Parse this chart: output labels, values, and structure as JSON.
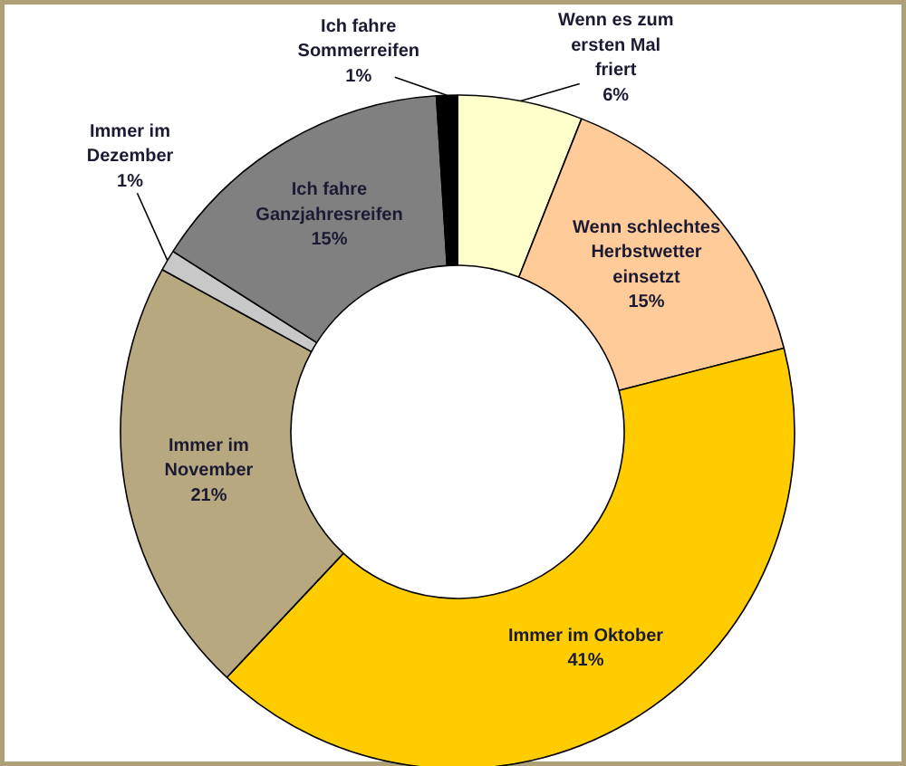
{
  "chart_data": {
    "type": "donut",
    "categories": [
      "Wenn es zum ersten Mal friert",
      "Wenn schlechtes Herbstwetter einsetzt",
      "Immer im Oktober",
      "Immer im November",
      "Immer im Dezember",
      "Ich fahre Ganzjahresreifen",
      "Ich fahre Sommerreifen"
    ],
    "values": [
      6,
      15,
      41,
      21,
      1,
      15,
      1
    ],
    "value_labels": [
      "6%",
      "15%",
      "41%",
      "21%",
      "1%",
      "15%",
      "1%"
    ],
    "colors": [
      "#ffffcc",
      "#ffcc99",
      "#ffcc00",
      "#b8a880",
      "#c8c8c8",
      "#808080",
      "#000000"
    ]
  }
}
